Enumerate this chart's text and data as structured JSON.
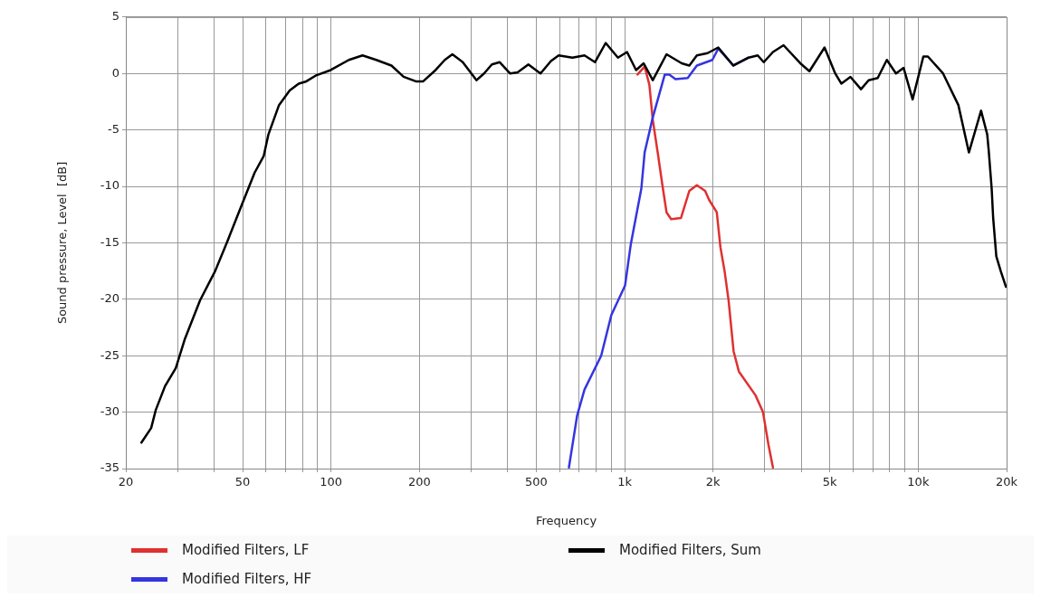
{
  "chart_data": {
    "type": "line",
    "xlabel": "Frequency",
    "ylabel": "Sound pressure, Level  [dB]",
    "log": "x",
    "grid": true,
    "legend": "bottom",
    "marker": "none",
    "line_style": "solid",
    "xlim": [
      20,
      20000
    ],
    "ylim": [
      -35,
      5
    ],
    "xticks": [
      20,
      {
        "value": 30,
        "label": null
      },
      {
        "value": 40,
        "label": null
      },
      50,
      {
        "value": 60,
        "label": null
      },
      {
        "value": 70,
        "label": null
      },
      {
        "value": 80,
        "label": null
      },
      {
        "value": 90,
        "label": null
      },
      100,
      200,
      {
        "value": 300,
        "label": null
      },
      {
        "value": 400,
        "label": null
      },
      500,
      {
        "value": 600,
        "label": null
      },
      {
        "value": 700,
        "label": null
      },
      {
        "value": 800,
        "label": null
      },
      {
        "value": 900,
        "label": null
      },
      {
        "value": 1000,
        "label": "1k"
      },
      {
        "value": 2000,
        "label": "2k"
      },
      {
        "value": 3000,
        "label": null
      },
      {
        "value": 4000,
        "label": null
      },
      {
        "value": 5000,
        "label": "5k"
      },
      {
        "value": 6000,
        "label": null
      },
      {
        "value": 7000,
        "label": null
      },
      {
        "value": 8000,
        "label": null
      },
      {
        "value": 9000,
        "label": null
      },
      {
        "value": 10000,
        "label": "10k"
      },
      {
        "value": 20000,
        "label": "20k"
      }
    ],
    "yticks": [
      -35,
      -30,
      -25,
      -20,
      -15,
      -10,
      -5,
      0,
      5
    ],
    "series": [
      {
        "name": "Modified Filters, LF",
        "color": "#e03030",
        "x": [
          1106,
          1170,
          1214,
          1247,
          1296,
          1345,
          1389,
          1440,
          1556,
          1661,
          1762,
          1880,
          1940,
          2060,
          2120,
          2190,
          2260,
          2350,
          2450,
          2790,
          2960,
          3090,
          3200
        ],
        "values": [
          -0.1,
          0.6,
          -1.0,
          -4.1,
          -7.0,
          -9.9,
          -12.3,
          -12.9,
          -12.8,
          -10.4,
          -9.9,
          -10.4,
          -11.2,
          -12.3,
          -15.4,
          -17.5,
          -20.1,
          -24.6,
          -26.4,
          -28.5,
          -30.0,
          -32.9,
          -34.9
        ]
      },
      {
        "name": "Modified Filters, HF",
        "color": "#3535e0",
        "x": [
          646,
          689,
          730,
          832,
          901,
          1003,
          1050,
          1140,
          1170,
          1247,
          1370,
          1420,
          1490,
          1640,
          1762,
          1850,
          1990,
          2084,
          2346,
          2644
        ],
        "values": [
          -34.9,
          -30.3,
          -28.0,
          -25.0,
          -21.4,
          -18.8,
          -15.1,
          -10.2,
          -7.0,
          -3.9,
          -0.1,
          -0.1,
          -0.5,
          -0.4,
          0.7,
          0.9,
          1.2,
          2.2,
          0.7,
          1.4
        ]
      },
      {
        "name": "Modified Filters, Sum",
        "color": "#000000",
        "x": [
          22.6,
          24.4,
          25.3,
          27.2,
          29.6,
          31.8,
          35.8,
          40.3,
          44.3,
          49.9,
          54.9,
          59,
          61.2,
          66.5,
          72.3,
          77.6,
          82.4,
          88.5,
          99.7,
          115,
          128,
          142.6,
          160.6,
          176.7,
          194.4,
          206,
          227,
          244,
          259,
          281,
          313,
          332,
          353,
          375,
          407,
          432,
          470,
          517,
          561,
          596,
          664,
          730,
          793,
          862,
          949,
          1019,
          1094,
          1161,
          1247,
          1389,
          1565,
          1661,
          1762,
          1916,
          2084,
          2346,
          2644,
          2840,
          2978,
          3200,
          3478,
          3966,
          4260,
          4796,
          5215,
          5470,
          5876,
          6384,
          6777,
          7278,
          7818,
          8400,
          8914,
          9570,
          10410,
          10790,
          12150,
          13700,
          14880,
          16370,
          17180,
          17380,
          17790,
          18000,
          18450,
          19100,
          19900
        ],
        "values": [
          -32.7,
          -31.4,
          -29.8,
          -27.7,
          -26.1,
          -23.5,
          -20.1,
          -17.5,
          -14.9,
          -11.5,
          -8.8,
          -7.3,
          -5.4,
          -2.8,
          -1.5,
          -0.9,
          -0.7,
          -0.2,
          0.3,
          1.2,
          1.6,
          1.2,
          0.7,
          -0.3,
          -0.7,
          -0.7,
          0.3,
          1.2,
          1.7,
          1.0,
          -0.6,
          0,
          0.8,
          1.0,
          0,
          0.1,
          0.8,
          0,
          1.1,
          1.6,
          1.4,
          1.6,
          1.0,
          2.7,
          1.4,
          1.9,
          0.3,
          0.9,
          -0.6,
          1.7,
          0.9,
          0.7,
          1.6,
          1.8,
          2.3,
          0.7,
          1.4,
          1.6,
          1.0,
          1.9,
          2.5,
          0.9,
          0.2,
          2.3,
          0,
          -0.9,
          -0.3,
          -1.4,
          -0.6,
          -0.4,
          1.2,
          0,
          0.5,
          -2.3,
          1.5,
          1.5,
          0,
          -2.8,
          -7.0,
          -3.3,
          -5.4,
          -6.8,
          -10.2,
          -12.8,
          -16.2,
          -17.5,
          -18.9
        ]
      }
    ]
  }
}
